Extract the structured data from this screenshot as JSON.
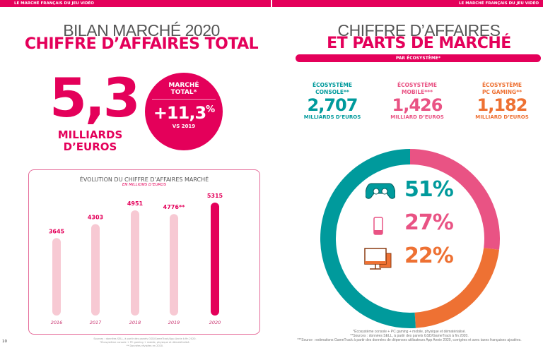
{
  "header": {
    "left": "LE MARCHÉ FRANÇAIS DU JEU VIDÉO",
    "right": "LE MARCHÉ FRANÇAIS DU JEU VIDÉO"
  },
  "left": {
    "title1": "BILAN MARCHÉ 2020",
    "title2": "CHIFFRE D’AFFAIRES TOTAL",
    "big_value": "5,3",
    "big_unit1": "MILLIARDS",
    "big_unit2": "D’EUROS",
    "badge": {
      "label1": "MARCHÉ",
      "label2": "TOTAL*",
      "value": "+11,3",
      "pct": "%",
      "note": "VS 2019"
    },
    "page_number": "10",
    "footnotes": [
      "Sources : données SELL, à partir des panels GSD/GameTrack/App Annie à fin 2020.",
      "*Écosystème console + PC gaming + mobile, physique et dématérialisé.",
      "** Données révisées en 2020."
    ]
  },
  "right": {
    "title1": "CHIFFRE D’AFFAIRES",
    "title2": "ET PARTS DE MARCHÉ",
    "pill": "PAR ÉCOSYSTÈME*",
    "ecosystems": [
      {
        "label1": "ÉCOSYSTÈME",
        "label2": "CONSOLE**",
        "value": "2,707",
        "unit": "MILLIARDS D’EUROS",
        "color": "#009a9c",
        "share": "51%",
        "icon": "gamepad-icon"
      },
      {
        "label1": "ÉCOSYSTÈME",
        "label2": "MOBILE***",
        "value": "1,426",
        "unit": "MILLIARD D’EUROS",
        "color": "#e95384",
        "share": "27%",
        "icon": "smartphone-icon"
      },
      {
        "label1": "ÉCOSYSTÈME",
        "label2": "PC GAMING**",
        "value": "1,182",
        "unit": "MILLIARD D’EUROS",
        "color": "#ee7133",
        "share": "22%",
        "icon": "desktop-computer-icon"
      }
    ],
    "footnotes": [
      "*Écosystème console + PC gaming + mobile, physique et dématérialisé.",
      "**Sources : données SELL, à partir des panels GSD/GameTrack à fin 2020.",
      "***Source : estimations GameTrack à partir des données de dépenses utilisateurs App Annie 2020, corrigées et avec taxes françaises ajoutées."
    ]
  },
  "chart_data": [
    {
      "type": "bar",
      "title": "ÉVOLUTION DU CHIFFRE D’AFFAIRES MARCHÉ",
      "subtitle": "EN MILLIONS D’EUROS",
      "categories": [
        "2016",
        "2017",
        "2018",
        "2019",
        "2020"
      ],
      "values": [
        3645,
        4303,
        4951,
        4776,
        5315
      ],
      "labels": [
        "3645",
        "4303",
        "4951",
        "4776**",
        "5315"
      ],
      "ylim": [
        0,
        5315
      ],
      "colors": {
        "default": "#f7c9d3",
        "highlight": "#e4005a"
      }
    },
    {
      "type": "pie",
      "style": "donut",
      "categories": [
        "Console",
        "Mobile",
        "PC Gaming"
      ],
      "values": [
        51,
        27,
        22
      ],
      "colors": [
        "#009a9c",
        "#e95384",
        "#ee7133"
      ]
    }
  ]
}
